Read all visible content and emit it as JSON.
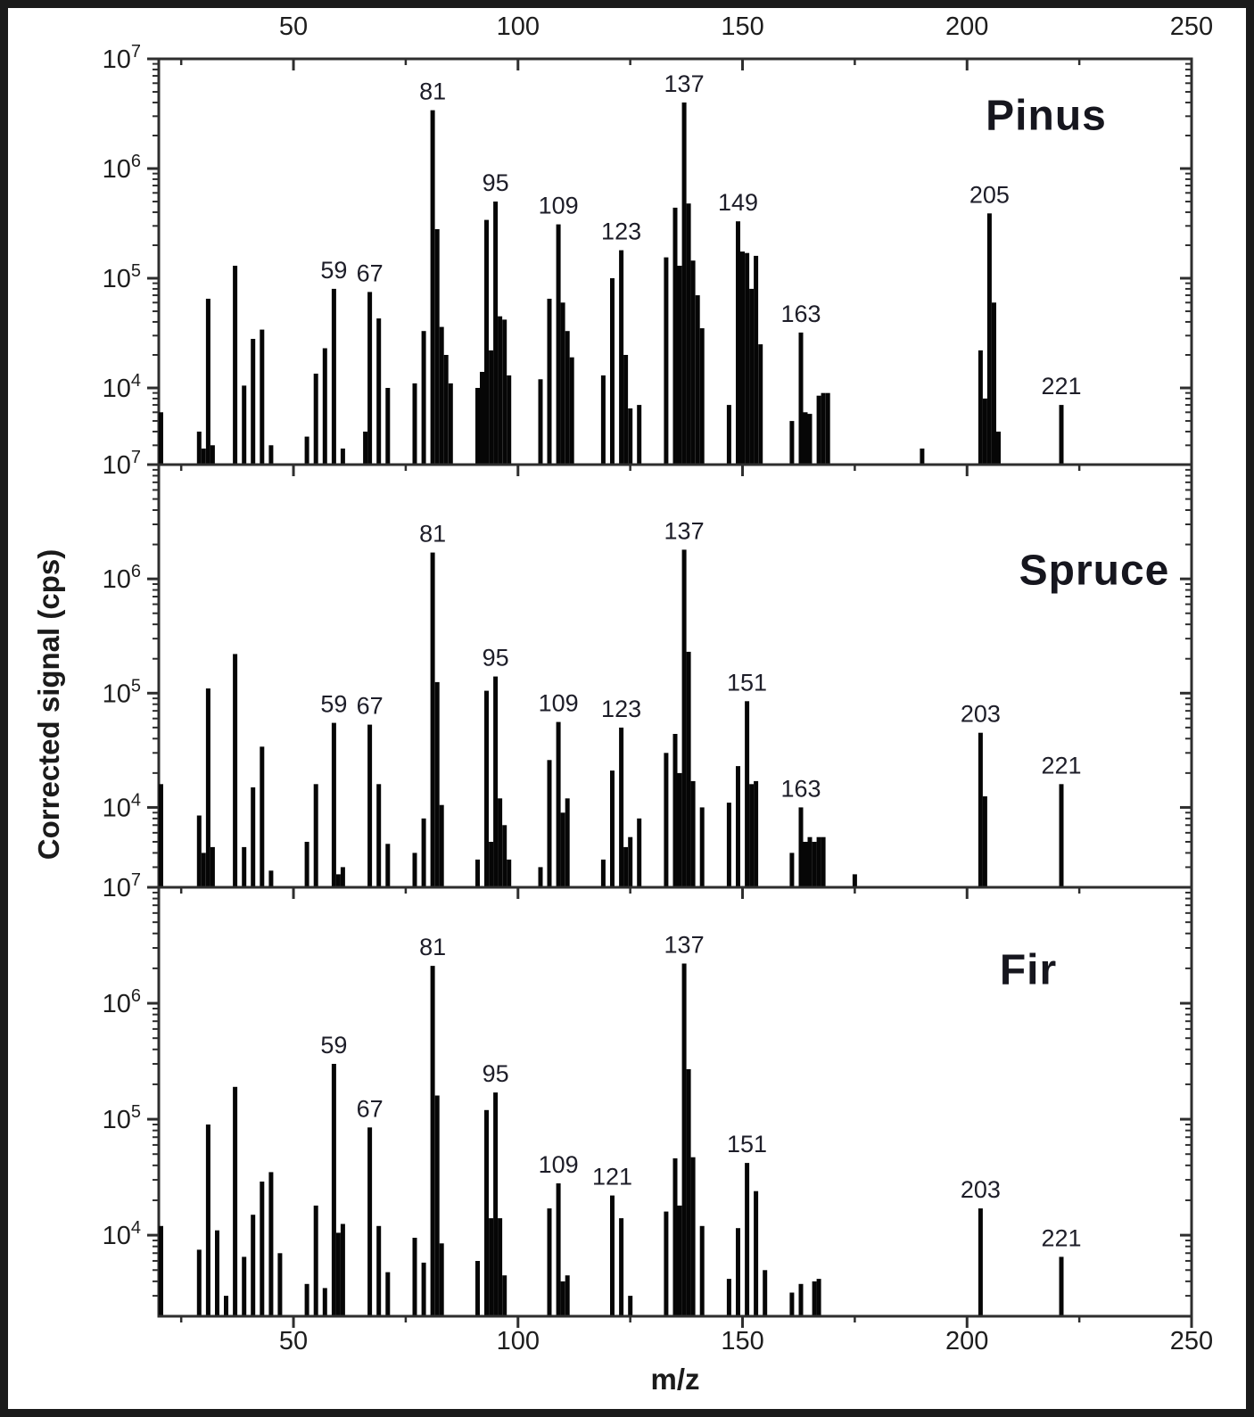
{
  "figure": {
    "kind": "mass-spectra-three-panel",
    "background": "#ffffff",
    "border_color": "#1b1b1b",
    "bar_color": "#060606",
    "frame_color": "#2e2e2e",
    "text_color": "#1d1d1d"
  },
  "axes": {
    "x": {
      "label": "m/z",
      "min": 20,
      "max": 250,
      "major_ticks": [
        "50",
        "100",
        "150",
        "200",
        "250"
      ],
      "major_tick_values": [
        50,
        100,
        150,
        200,
        250
      ],
      "minor_tick_values": [
        25,
        75,
        125,
        175,
        225
      ]
    },
    "y": {
      "label": "Corrected signal (cps)",
      "scale": "log",
      "min": 2000,
      "max": 10000000,
      "tick_base": "10",
      "tick_exponents": [
        7,
        6,
        5,
        4
      ]
    }
  },
  "chart_data": [
    {
      "type": "bar",
      "subtype": "mass-spectrum-sticks",
      "title": "Pinus",
      "xlabel": "m/z",
      "ylabel": "Corrected signal (cps)",
      "xlim": [
        20,
        250
      ],
      "ylim": [
        2000,
        10000000
      ],
      "yscale": "log",
      "grid": false,
      "labeled_peaks": [
        59,
        67,
        81,
        95,
        109,
        123,
        137,
        149,
        163,
        205,
        221
      ],
      "sticks": [
        [
          20.5,
          6000
        ],
        [
          29,
          4000
        ],
        [
          30,
          2800
        ],
        [
          31,
          65000
        ],
        [
          32,
          3000
        ],
        [
          37,
          130000
        ],
        [
          39,
          10500
        ],
        [
          41,
          28000
        ],
        [
          43,
          34000
        ],
        [
          45,
          3000
        ],
        [
          53,
          3600
        ],
        [
          55,
          13500
        ],
        [
          57,
          23000
        ],
        [
          59,
          80000
        ],
        [
          61,
          2800
        ],
        [
          66,
          4000
        ],
        [
          67,
          75000
        ],
        [
          69,
          43000
        ],
        [
          71,
          10000
        ],
        [
          77,
          11000
        ],
        [
          79,
          33000
        ],
        [
          81,
          3400000
        ],
        [
          82,
          280000
        ],
        [
          83,
          36000
        ],
        [
          84,
          20000
        ],
        [
          85,
          11000
        ],
        [
          91,
          10000
        ],
        [
          92,
          14000
        ],
        [
          93,
          340000
        ],
        [
          94,
          22000
        ],
        [
          95,
          500000
        ],
        [
          96,
          45000
        ],
        [
          97,
          42000
        ],
        [
          98,
          13000
        ],
        [
          105,
          12000
        ],
        [
          107,
          65000
        ],
        [
          109,
          310000
        ],
        [
          110,
          60000
        ],
        [
          111,
          33000
        ],
        [
          112,
          19000
        ],
        [
          119,
          13000
        ],
        [
          121,
          100000
        ],
        [
          123,
          180000
        ],
        [
          124,
          20000
        ],
        [
          125,
          6500
        ],
        [
          127,
          7000
        ],
        [
          133,
          155000
        ],
        [
          135,
          440000
        ],
        [
          136,
          130000
        ],
        [
          137,
          4000000
        ],
        [
          138,
          480000
        ],
        [
          139,
          145000
        ],
        [
          140,
          70000
        ],
        [
          141,
          35000
        ],
        [
          147,
          7000
        ],
        [
          149,
          330000
        ],
        [
          150,
          175000
        ],
        [
          151,
          170000
        ],
        [
          152,
          80000
        ],
        [
          153,
          160000
        ],
        [
          154,
          25000
        ],
        [
          161,
          5000
        ],
        [
          163,
          32000
        ],
        [
          164,
          6000
        ],
        [
          165,
          5800
        ],
        [
          167,
          8500
        ],
        [
          168,
          9000
        ],
        [
          169,
          9000
        ],
        [
          190,
          2800
        ],
        [
          203,
          22000
        ],
        [
          204,
          8000
        ],
        [
          205,
          390000
        ],
        [
          206,
          60000
        ],
        [
          207,
          4000
        ],
        [
          221,
          7000
        ]
      ]
    },
    {
      "type": "bar",
      "subtype": "mass-spectrum-sticks",
      "title": "Spruce",
      "xlabel": "m/z",
      "ylabel": "Corrected signal (cps)",
      "xlim": [
        20,
        250
      ],
      "ylim": [
        2000,
        10000000
      ],
      "yscale": "log",
      "grid": false,
      "labeled_peaks": [
        59,
        67,
        81,
        95,
        109,
        123,
        137,
        151,
        163,
        203,
        221
      ],
      "sticks": [
        [
          20.5,
          16000
        ],
        [
          29,
          8500
        ],
        [
          30,
          4000
        ],
        [
          31,
          110000
        ],
        [
          32,
          4500
        ],
        [
          37,
          220000
        ],
        [
          39,
          4500
        ],
        [
          41,
          15000
        ],
        [
          43,
          34000
        ],
        [
          45,
          2800
        ],
        [
          53,
          5000
        ],
        [
          55,
          16000
        ],
        [
          59,
          55000
        ],
        [
          60,
          2600
        ],
        [
          61,
          3000
        ],
        [
          67,
          53000
        ],
        [
          69,
          16000
        ],
        [
          71,
          4800
        ],
        [
          77,
          4000
        ],
        [
          79,
          8000
        ],
        [
          81,
          1700000
        ],
        [
          82,
          125000
        ],
        [
          83,
          10500
        ],
        [
          91,
          3500
        ],
        [
          93,
          105000
        ],
        [
          94,
          5000
        ],
        [
          95,
          140000
        ],
        [
          96,
          12000
        ],
        [
          97,
          7000
        ],
        [
          98,
          3500
        ],
        [
          105,
          3000
        ],
        [
          107,
          26000
        ],
        [
          109,
          56000
        ],
        [
          110,
          9000
        ],
        [
          111,
          12000
        ],
        [
          119,
          3500
        ],
        [
          121,
          21000
        ],
        [
          123,
          50000
        ],
        [
          124,
          4500
        ],
        [
          125,
          5500
        ],
        [
          127,
          8000
        ],
        [
          133,
          30000
        ],
        [
          135,
          44000
        ],
        [
          136,
          20000
        ],
        [
          137,
          1800000
        ],
        [
          138,
          230000
        ],
        [
          139,
          17000
        ],
        [
          141,
          10000
        ],
        [
          147,
          11000
        ],
        [
          149,
          23000
        ],
        [
          151,
          85000
        ],
        [
          152,
          16000
        ],
        [
          153,
          17000
        ],
        [
          161,
          4000
        ],
        [
          163,
          10000
        ],
        [
          164,
          5000
        ],
        [
          165,
          5500
        ],
        [
          166,
          5000
        ],
        [
          167,
          5500
        ],
        [
          168,
          5500
        ],
        [
          175,
          2600
        ],
        [
          203,
          45000
        ],
        [
          204,
          12500
        ],
        [
          221,
          16000
        ]
      ]
    },
    {
      "type": "bar",
      "subtype": "mass-spectrum-sticks",
      "title": "Fir",
      "xlabel": "m/z",
      "ylabel": "Corrected signal (cps)",
      "xlim": [
        20,
        250
      ],
      "ylim": [
        2000,
        10000000
      ],
      "yscale": "log",
      "grid": false,
      "labeled_peaks": [
        59,
        67,
        81,
        95,
        109,
        121,
        137,
        151,
        203,
        221
      ],
      "sticks": [
        [
          20.5,
          12000
        ],
        [
          29,
          7500
        ],
        [
          31,
          90000
        ],
        [
          33,
          11000
        ],
        [
          35,
          3000
        ],
        [
          37,
          190000
        ],
        [
          39,
          6500
        ],
        [
          41,
          15000
        ],
        [
          43,
          29000
        ],
        [
          45,
          35000
        ],
        [
          47,
          7000
        ],
        [
          53,
          3800
        ],
        [
          55,
          18000
        ],
        [
          57,
          3500
        ],
        [
          59,
          300000
        ],
        [
          60,
          10500
        ],
        [
          61,
          12500
        ],
        [
          67,
          85000
        ],
        [
          69,
          12000
        ],
        [
          71,
          4800
        ],
        [
          77,
          9500
        ],
        [
          79,
          5800
        ],
        [
          81,
          2100000
        ],
        [
          82,
          160000
        ],
        [
          83,
          8500
        ],
        [
          91,
          6000
        ],
        [
          93,
          120000
        ],
        [
          94,
          14000
        ],
        [
          95,
          170000
        ],
        [
          96,
          14000
        ],
        [
          97,
          4500
        ],
        [
          107,
          17000
        ],
        [
          109,
          28000
        ],
        [
          110,
          4000
        ],
        [
          111,
          4500
        ],
        [
          121,
          22000
        ],
        [
          123,
          14000
        ],
        [
          125,
          3000
        ],
        [
          133,
          16000
        ],
        [
          135,
          46000
        ],
        [
          136,
          18000
        ],
        [
          137,
          2200000
        ],
        [
          138,
          270000
        ],
        [
          139,
          47000
        ],
        [
          141,
          12000
        ],
        [
          147,
          4200
        ],
        [
          149,
          11500
        ],
        [
          151,
          42000
        ],
        [
          153,
          24000
        ],
        [
          155,
          5000
        ],
        [
          161,
          3200
        ],
        [
          163,
          3800
        ],
        [
          166,
          4000
        ],
        [
          167,
          4200
        ],
        [
          203,
          17000
        ],
        [
          221,
          6500
        ]
      ]
    }
  ]
}
